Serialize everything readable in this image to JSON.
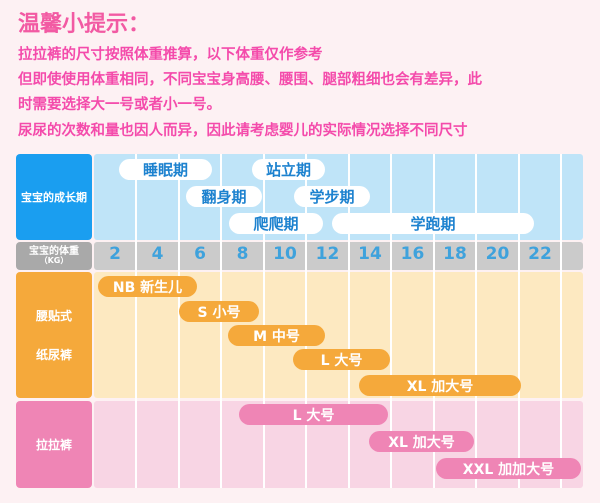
{
  "title": "温馨小提示：",
  "tips": [
    "拉拉裤的尺寸按照体重推算，以下体重仅作参考",
    "但即使使用体重相同，不同宝宝身高腰、腰围、腿部粗细也会有差异，此",
    "时需要选择大一号或者小一号。",
    "尿尿的次数和量也因人而异，因此请考虑婴儿的实际情况选择不同尺寸"
  ],
  "colors": {
    "growth": "#1a9ef0",
    "weight": "#a9a9a9",
    "tape": "#f5a93b",
    "pants": "#ef85b5"
  },
  "rows": {
    "growth": "宝宝的成长期",
    "weight_label": "宝宝的体重",
    "weight_unit": "（KG）",
    "tape_line1": "腰贴式",
    "tape_line2": "纸尿裤",
    "pants": "拉拉裤"
  },
  "weights": [
    "2",
    "4",
    "6",
    "8",
    "10",
    "12",
    "14",
    "16",
    "18",
    "20",
    "22"
  ],
  "stages": [
    "睡眠期",
    "站立期",
    "翻身期",
    "学步期",
    "爬爬期",
    "学跑期"
  ],
  "tape_sizes": [
    "NB 新生儿",
    "S 小号",
    "M 中号",
    "L 大号",
    "XL 加大号"
  ],
  "pants_sizes": [
    "L 大号",
    "XL 加大号",
    "XXL 加加大号"
  ]
}
